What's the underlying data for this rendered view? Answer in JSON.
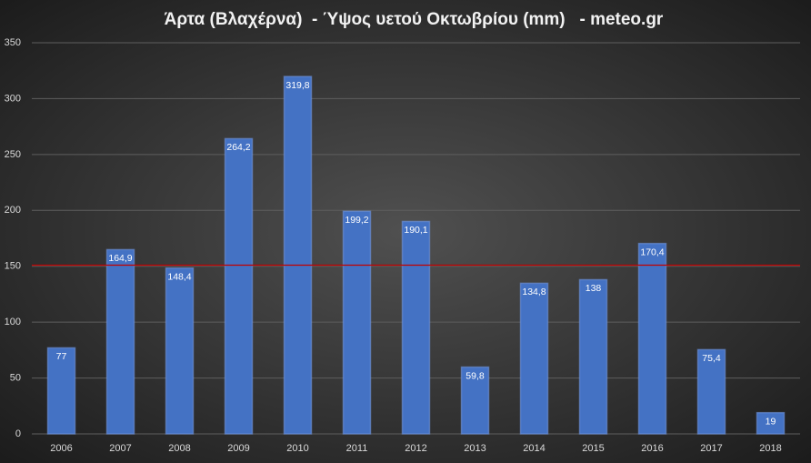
{
  "chart_data": {
    "type": "bar",
    "title": "Άρτα (Βλαχέρνα)  - Ύψος υετού Οκτωβρίου (mm)   - meteo.gr",
    "categories": [
      "2006",
      "2007",
      "2008",
      "2009",
      "2010",
      "2011",
      "2012",
      "2013",
      "2014",
      "2015",
      "2016",
      "2017",
      "2018"
    ],
    "values": [
      77,
      164.9,
      148.4,
      264.2,
      319.8,
      199.2,
      190.1,
      59.8,
      134.8,
      138,
      170.4,
      75.4,
      19
    ],
    "value_labels": [
      "77",
      "164,9",
      "148,4",
      "264,2",
      "319,8",
      "199,2",
      "190,1",
      "59,8",
      "134,8",
      "138",
      "170,4",
      "75,4",
      "19"
    ],
    "color": "#4472c4",
    "ylim": [
      0,
      350
    ],
    "yticks": [
      0,
      50,
      100,
      150,
      200,
      250,
      300,
      350
    ],
    "grid": true,
    "reference_line": {
      "value": 151,
      "color": "#c00000"
    }
  }
}
